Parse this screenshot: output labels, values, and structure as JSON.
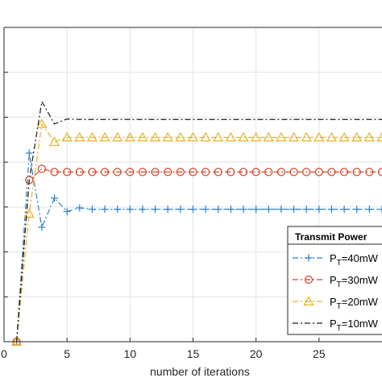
{
  "chart_data": {
    "type": "line",
    "title": "",
    "xlabel": "number of iterations",
    "ylabel": "",
    "xlim": [
      0,
      30
    ],
    "ylim": [
      0,
      7
    ],
    "x_ticks": [
      0,
      5,
      10,
      15,
      20,
      25
    ],
    "x_tick_labels": [
      "0",
      "5",
      "10",
      "15",
      "20",
      "25"
    ],
    "grid": true,
    "legend": {
      "title": "Transmit Power",
      "placement": "bottom-right"
    },
    "x": [
      1,
      2,
      3,
      4,
      5,
      6,
      7,
      8,
      9,
      10,
      11,
      12,
      13,
      14,
      15,
      16,
      17,
      18,
      19,
      20,
      21,
      22,
      23,
      24,
      25,
      26,
      27,
      28,
      29,
      30
    ],
    "series": [
      {
        "name": "P_T=40mW",
        "color": "#2a7fce",
        "line": "dashdot",
        "marker": "plus",
        "values": [
          0,
          4.2,
          2.55,
          3.2,
          2.9,
          2.98,
          2.95,
          2.95,
          2.95,
          2.95,
          2.95,
          2.95,
          2.95,
          2.95,
          2.95,
          2.95,
          2.95,
          2.95,
          2.95,
          2.95,
          2.95,
          2.95,
          2.95,
          2.95,
          2.95,
          2.95,
          2.95,
          2.95,
          2.95,
          2.95
        ]
      },
      {
        "name": "P_T=30mW",
        "color": "#d5432a",
        "line": "dashdot",
        "marker": "circle",
        "values": [
          0,
          3.6,
          3.85,
          3.78,
          3.78,
          3.78,
          3.78,
          3.78,
          3.78,
          3.78,
          3.78,
          3.78,
          3.78,
          3.78,
          3.78,
          3.78,
          3.78,
          3.78,
          3.78,
          3.78,
          3.78,
          3.78,
          3.78,
          3.78,
          3.78,
          3.78,
          3.78,
          3.78,
          3.78,
          3.78
        ]
      },
      {
        "name": "P_T=20mW",
        "color": "#e6b124",
        "line": "dashdot",
        "marker": "triangle",
        "values": [
          0,
          2.85,
          4.85,
          4.45,
          4.55,
          4.55,
          4.55,
          4.55,
          4.55,
          4.55,
          4.55,
          4.55,
          4.55,
          4.55,
          4.55,
          4.55,
          4.55,
          4.55,
          4.55,
          4.55,
          4.55,
          4.55,
          4.55,
          4.55,
          4.55,
          4.55,
          4.55,
          4.55,
          4.55,
          4.55
        ]
      },
      {
        "name": "P_T=10mW",
        "color": "#1a1a1a",
        "line": "dashdot",
        "marker": "none",
        "values": [
          0,
          3.6,
          5.35,
          4.85,
          4.96,
          4.95,
          4.95,
          4.95,
          4.95,
          4.95,
          4.95,
          4.95,
          4.95,
          4.95,
          4.95,
          4.95,
          4.95,
          4.95,
          4.95,
          4.95,
          4.95,
          4.95,
          4.95,
          4.95,
          4.95,
          4.95,
          4.95,
          4.95,
          4.95,
          4.95
        ]
      }
    ]
  }
}
